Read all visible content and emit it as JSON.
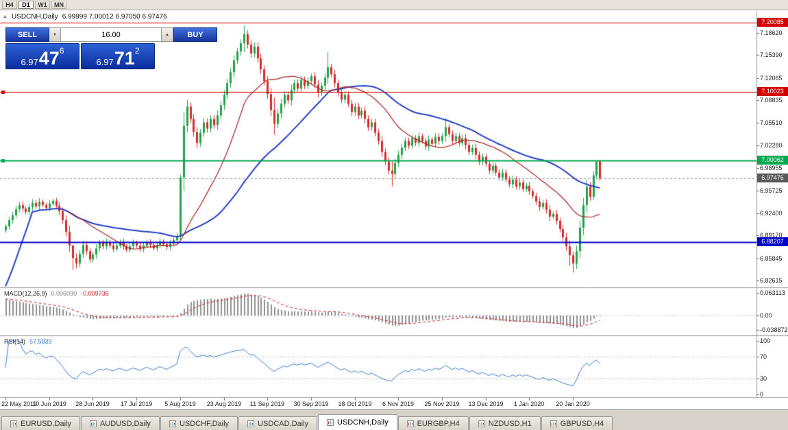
{
  "icons": {
    "autoscroll": "▲",
    "volume_down": "▼",
    "volume_up": "▲"
  },
  "toolbar": {
    "timeframes": [
      {
        "label": "H4",
        "active": false
      },
      {
        "label": "D1",
        "active": true
      },
      {
        "label": "W1",
        "active": false
      },
      {
        "label": "MN",
        "active": false
      }
    ]
  },
  "trade_panel": {
    "sell_label": "SELL",
    "buy_label": "BUY",
    "volume": "16.00",
    "sell_price": {
      "prefix": "6.97",
      "big": "47",
      "sup": "6"
    },
    "buy_price": {
      "prefix": "6.97",
      "big": "71",
      "sup": "2"
    }
  },
  "tabs": [
    {
      "label": "EURUSD,Daily",
      "active": false
    },
    {
      "label": "AUDUSD,Daily",
      "active": false
    },
    {
      "label": "USDCHF,Daily",
      "active": false
    },
    {
      "label": "USDCAD,Daily",
      "active": false
    },
    {
      "label": "USDCNH,Daily",
      "active": true
    },
    {
      "label": "EURGBP,H4",
      "active": false
    },
    {
      "label": "NZDUSD,H1",
      "active": false
    },
    {
      "label": "GBPUSD,H4",
      "active": false
    }
  ],
  "chart_data": {
    "type": "candlestick",
    "title": "USDCNH,Daily",
    "quote": "6.99999 7.00012 6.97050 6.97476",
    "up_color": "#1fa34a",
    "down_color": "#d92b2b",
    "ylim": [
      6.8164,
      7.2178
    ],
    "yticks": [
      "7.18620",
      "7.15390",
      "7.12065",
      "7.08835",
      "7.05510",
      "7.02280",
      "6.98955",
      "6.95725",
      "6.92400",
      "6.89170",
      "6.85845",
      "6.82615"
    ],
    "ytick_values": [
      7.1862,
      7.1539,
      7.12065,
      7.08835,
      7.0551,
      7.0228,
      6.98955,
      6.95725,
      6.924,
      6.8917,
      6.85845,
      6.82615
    ],
    "xtick_labels": [
      "22 May 2019",
      "10 Jun 2019",
      "28 Jun 2019",
      "17 Jul 2019",
      "5 Aug 2019",
      "23 Aug 2019",
      "11 Sep 2019",
      "30 Sep 2019",
      "18 Oct 2019",
      "6 Nov 2019",
      "25 Nov 2019",
      "13 Dec 2019",
      "1 Jan 2020",
      "20 Jan 2020"
    ],
    "xtick_bar_indices": [
      0,
      13,
      26,
      39,
      52,
      65,
      78,
      91,
      104,
      117,
      130,
      143,
      156,
      169
    ],
    "closes": [
      6.905,
      6.914,
      6.921,
      6.93,
      6.936,
      6.931,
      6.926,
      6.933,
      6.939,
      6.934,
      6.941,
      6.936,
      6.932,
      6.938,
      6.942,
      6.935,
      6.927,
      6.914,
      6.897,
      6.877,
      6.859,
      6.851,
      6.865,
      6.878,
      6.869,
      6.857,
      6.864,
      6.873,
      6.881,
      6.876,
      6.882,
      6.877,
      6.872,
      6.877,
      6.882,
      6.876,
      6.871,
      6.876,
      6.881,
      6.877,
      6.872,
      6.877,
      6.882,
      6.878,
      6.873,
      6.878,
      6.883,
      6.879,
      6.875,
      6.88,
      6.885,
      6.891,
      6.976,
      7.051,
      7.079,
      7.061,
      7.042,
      7.026,
      7.041,
      7.056,
      7.047,
      7.061,
      7.052,
      7.066,
      7.081,
      7.096,
      7.113,
      7.129,
      7.146,
      7.159,
      7.171,
      7.184,
      7.169,
      7.156,
      7.166,
      7.149,
      7.133,
      7.116,
      7.097,
      7.074,
      7.054,
      7.069,
      7.083,
      7.096,
      7.088,
      7.103,
      7.113,
      7.105,
      7.118,
      7.109,
      7.116,
      7.123,
      7.111,
      7.099,
      7.109,
      7.121,
      7.136,
      7.126,
      7.113,
      7.099,
      7.089,
      7.096,
      7.083,
      7.071,
      7.079,
      7.066,
      7.073,
      7.061,
      7.049,
      7.056,
      7.041,
      7.029,
      7.013,
      6.999,
      6.986,
      6.981,
      6.997,
      7.009,
      7.019,
      7.029,
      7.022,
      7.033,
      7.026,
      7.036,
      7.029,
      7.021,
      7.031,
      7.025,
      7.035,
      7.029,
      7.036,
      7.049,
      7.039,
      7.029,
      7.036,
      7.026,
      7.033,
      7.023,
      7.013,
      7.019,
      7.009,
      6.999,
      7.006,
      6.996,
      6.986,
      6.993,
      6.983,
      6.976,
      6.983,
      6.973,
      6.966,
      6.973,
      6.963,
      6.969,
      6.959,
      6.964,
      6.956,
      6.949,
      6.941,
      6.933,
      6.939,
      6.929,
      6.919,
      6.923,
      6.913,
      6.901,
      6.889,
      6.876,
      6.863,
      6.851,
      6.869,
      6.903,
      6.936,
      6.963,
      6.948,
      6.979,
      6.999,
      6.97476
    ],
    "last_candle": {
      "open": 6.99999,
      "high": 7.00012,
      "low": 6.9705,
      "close": 6.97476
    },
    "wick_overrides": {
      "20": [
        6.878,
        6.842
      ],
      "21": [
        6.866,
        6.844
      ],
      "52": [
        6.98,
        6.885
      ],
      "71": [
        7.196,
        7.158
      ],
      "80": [
        7.092,
        7.038
      ],
      "96": [
        7.158,
        7.112
      ],
      "115": [
        6.999,
        6.963
      ],
      "131": [
        7.062,
        7.028
      ],
      "168": [
        6.884,
        6.848
      ],
      "169": [
        6.868,
        6.838
      ],
      "175": [
        6.985,
        6.944
      ],
      "176": [
        7.0,
        6.975
      ]
    },
    "ma_warmup_start": 6.818,
    "moving_averages": [
      {
        "period": 20,
        "color": "#b02020"
      },
      {
        "period": 45,
        "color": "#2440c8"
      }
    ],
    "hlines": [
      {
        "price": 7.20085,
        "label": "7.20085",
        "color": "#d40000",
        "width": 1,
        "handles": false
      },
      {
        "price": 7.10023,
        "label": "7.10023",
        "color": "#d40000",
        "width": 1,
        "handles": true
      },
      {
        "price": 7.00062,
        "label": "7.00062",
        "color": "#00a84f",
        "width": 2,
        "handles": true
      },
      {
        "price": 6.88207,
        "label": "6.88207",
        "color": "#0000c8",
        "width": 2,
        "handles": false
      }
    ],
    "current_price": {
      "value": 6.97476,
      "label": "6.97476",
      "color": "#595959"
    },
    "macd": {
      "label": "MACD(12,26,9)",
      "value_main": "0.006090",
      "value_signal": "-0.009736",
      "params": [
        12,
        26,
        9
      ],
      "ylim": [
        -0.054,
        0.0745
      ],
      "yticks": [
        "0.063113",
        "0.00",
        "-0.038872"
      ],
      "ytick_values": [
        0.063113,
        0,
        -0.038872
      ],
      "hist_color": "#909090",
      "signal_color": "#cc2020"
    },
    "rsi": {
      "label": "RSI(14)",
      "value": "57.5839",
      "period": 14,
      "ylim": [
        -6.4,
        107.7
      ],
      "yticks": [
        "100",
        "70",
        "30",
        "0"
      ],
      "ytick_values": [
        100,
        70,
        30,
        0
      ],
      "levels": [
        70,
        30
      ],
      "line_color": "#3b7bd4"
    }
  }
}
